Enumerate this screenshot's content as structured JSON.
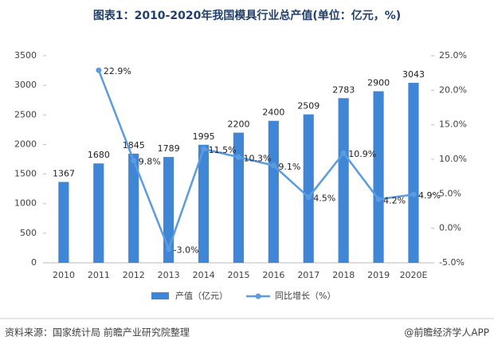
{
  "chart_data": {
    "type": "bar",
    "title": "图表1：2010-2020年我国模具行业总产值(单位：亿元，%)",
    "categories": [
      "2010",
      "2011",
      "2012",
      "2013",
      "2014",
      "2015",
      "2016",
      "2017",
      "2018",
      "2019",
      "2020E"
    ],
    "series": [
      {
        "name": "产值（亿元）",
        "type": "bar",
        "color": "#3f86d6",
        "values": [
          1367,
          1680,
          1845,
          1789,
          1995,
          2200,
          2400,
          2509,
          2783,
          2900,
          3043
        ]
      },
      {
        "name": "同比增长（%）",
        "type": "line",
        "axis": "y2",
        "color": "#5b9be0",
        "values": [
          null,
          22.9,
          9.8,
          -3.0,
          11.5,
          10.3,
          9.1,
          4.5,
          10.9,
          4.2,
          4.9
        ],
        "value_labels": [
          null,
          "22.9%",
          "9.8%",
          "-3.0%",
          "11.5%",
          "10.3%",
          "9.1%",
          "4.5%",
          "10.9%",
          "4.2%",
          "4.9%"
        ]
      }
    ],
    "ylim": [
      0,
      3500
    ],
    "yticks": [
      0,
      500,
      1000,
      1500,
      2000,
      2500,
      3000,
      3500
    ],
    "y2lim": [
      -5,
      25
    ],
    "y2ticks": [
      {
        "value": -5,
        "label": "-5.0%"
      },
      {
        "value": 0,
        "label": "0.0%"
      },
      {
        "value": 5,
        "label": "5.0%"
      },
      {
        "value": 10,
        "label": "10.0%"
      },
      {
        "value": 15,
        "label": "15.0%"
      },
      {
        "value": 20,
        "label": "20.0%"
      },
      {
        "value": 25,
        "label": "25.0%"
      }
    ],
    "legend": "bottom",
    "source": "资料来源：国家统计局 前瞻产业研究院整理",
    "credit": "@前瞻经济学人APP"
  }
}
